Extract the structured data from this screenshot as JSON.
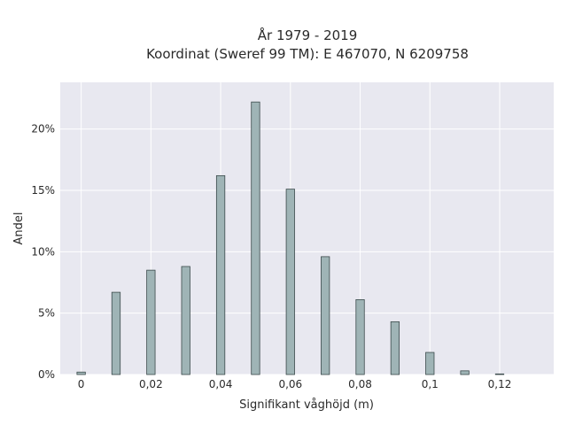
{
  "chart_data": {
    "type": "bar",
    "title": "År 1979 - 2019",
    "subtitle": "Koordinat (Sweref 99 TM): E 467070, N 6209758",
    "xlabel": "Signifikant våghöjd (m)",
    "ylabel": "Andel",
    "x": [
      0,
      0.01,
      0.02,
      0.03,
      0.04,
      0.05,
      0.06,
      0.07,
      0.08,
      0.09,
      0.1,
      0.11,
      0.12
    ],
    "values": [
      0.2,
      6.7,
      8.5,
      8.8,
      16.2,
      22.2,
      15.1,
      9.6,
      6.1,
      4.3,
      1.8,
      0.3,
      0.05
    ],
    "xlim": [
      -0.006,
      0.1355
    ],
    "ylim": [
      0,
      23.8
    ],
    "x_ticks": [
      0,
      0.02,
      0.04,
      0.06,
      0.08,
      0.1,
      0.12
    ],
    "x_tick_labels": [
      "0",
      "0,02",
      "0,04",
      "0,06",
      "0,08",
      "0,1",
      "0,12"
    ],
    "y_ticks": [
      0,
      5,
      10,
      15,
      20
    ],
    "y_tick_labels": [
      "0%",
      "5%",
      "10%",
      "15%",
      "20%"
    ],
    "bar_width": 0.0024,
    "grid": true,
    "colors": {
      "plot_bg": "#e8e8f0",
      "grid": "#ffffff",
      "bar_fill": "#9fb4b6",
      "bar_stroke": "#3b4a4b"
    }
  }
}
